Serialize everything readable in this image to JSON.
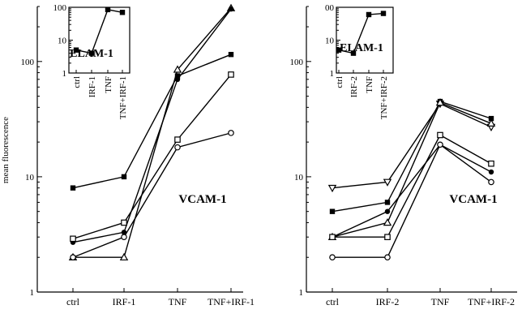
{
  "figure": {
    "ylabel": "mean fluorescence"
  },
  "chart_data": [
    {
      "type": "line",
      "scale": "log",
      "ylim": [
        1,
        300
      ],
      "y_ticks": [
        "1",
        "10",
        "100"
      ],
      "categories": [
        "ctrl",
        "IRF-1",
        "TNF",
        "TNF+IRF-1"
      ],
      "annotation": "VCAM-1",
      "series": [
        {
          "marker": "filled-square",
          "values": [
            8,
            10,
            75,
            115
          ]
        },
        {
          "marker": "open-triangle",
          "values": [
            2,
            2,
            85,
            290
          ]
        },
        {
          "marker": "filled-circle",
          "values": [
            2.7,
            3.3,
            70,
            285
          ]
        },
        {
          "marker": "open-square",
          "values": [
            2.9,
            4,
            21,
            77
          ]
        },
        {
          "marker": "open-circle",
          "values": [
            2,
            3,
            18,
            24
          ]
        }
      ],
      "inset": {
        "type": "line",
        "scale": "log",
        "ylim": [
          1,
          100
        ],
        "y_ticks": [
          "1",
          "10",
          "100"
        ],
        "categories": [
          "ctrl",
          "IRF-1",
          "TNF",
          "TNF+IRF-1"
        ],
        "annotation": "ELAM-1",
        "series": [
          {
            "marker": "filled-square",
            "values": [
              5,
              4,
              85,
              70
            ]
          }
        ]
      }
    },
    {
      "type": "line",
      "scale": "log",
      "ylim": [
        1,
        300
      ],
      "y_ticks": [
        "1",
        "10",
        "100"
      ],
      "categories": [
        "ctrl",
        "IRF-2",
        "TNF",
        "TNF+IRF-2"
      ],
      "annotation": "VCAM-1",
      "series": [
        {
          "marker": "open-inverted-triangle",
          "values": [
            8,
            9,
            43,
            27
          ]
        },
        {
          "marker": "filled-square",
          "values": [
            5,
            6,
            45,
            32
          ]
        },
        {
          "marker": "open-triangle",
          "values": [
            3,
            4,
            44,
            29
          ]
        },
        {
          "marker": "filled-circle",
          "values": [
            3,
            5,
            19,
            11
          ]
        },
        {
          "marker": "open-square",
          "values": [
            3,
            3,
            23,
            13
          ]
        },
        {
          "marker": "open-circle",
          "values": [
            2,
            2,
            19,
            9
          ]
        }
      ],
      "inset": {
        "type": "line",
        "scale": "log",
        "ylim": [
          1,
          100
        ],
        "y_ticks": [
          "1",
          "10",
          "00"
        ],
        "categories": [
          "ctrl",
          "IRF-2",
          "TNF",
          "TNF+IRF-2"
        ],
        "annotation": "ELAM-1",
        "series": [
          {
            "marker": "filled-square",
            "values": [
              5,
              4,
              60,
              65
            ]
          }
        ]
      }
    }
  ]
}
